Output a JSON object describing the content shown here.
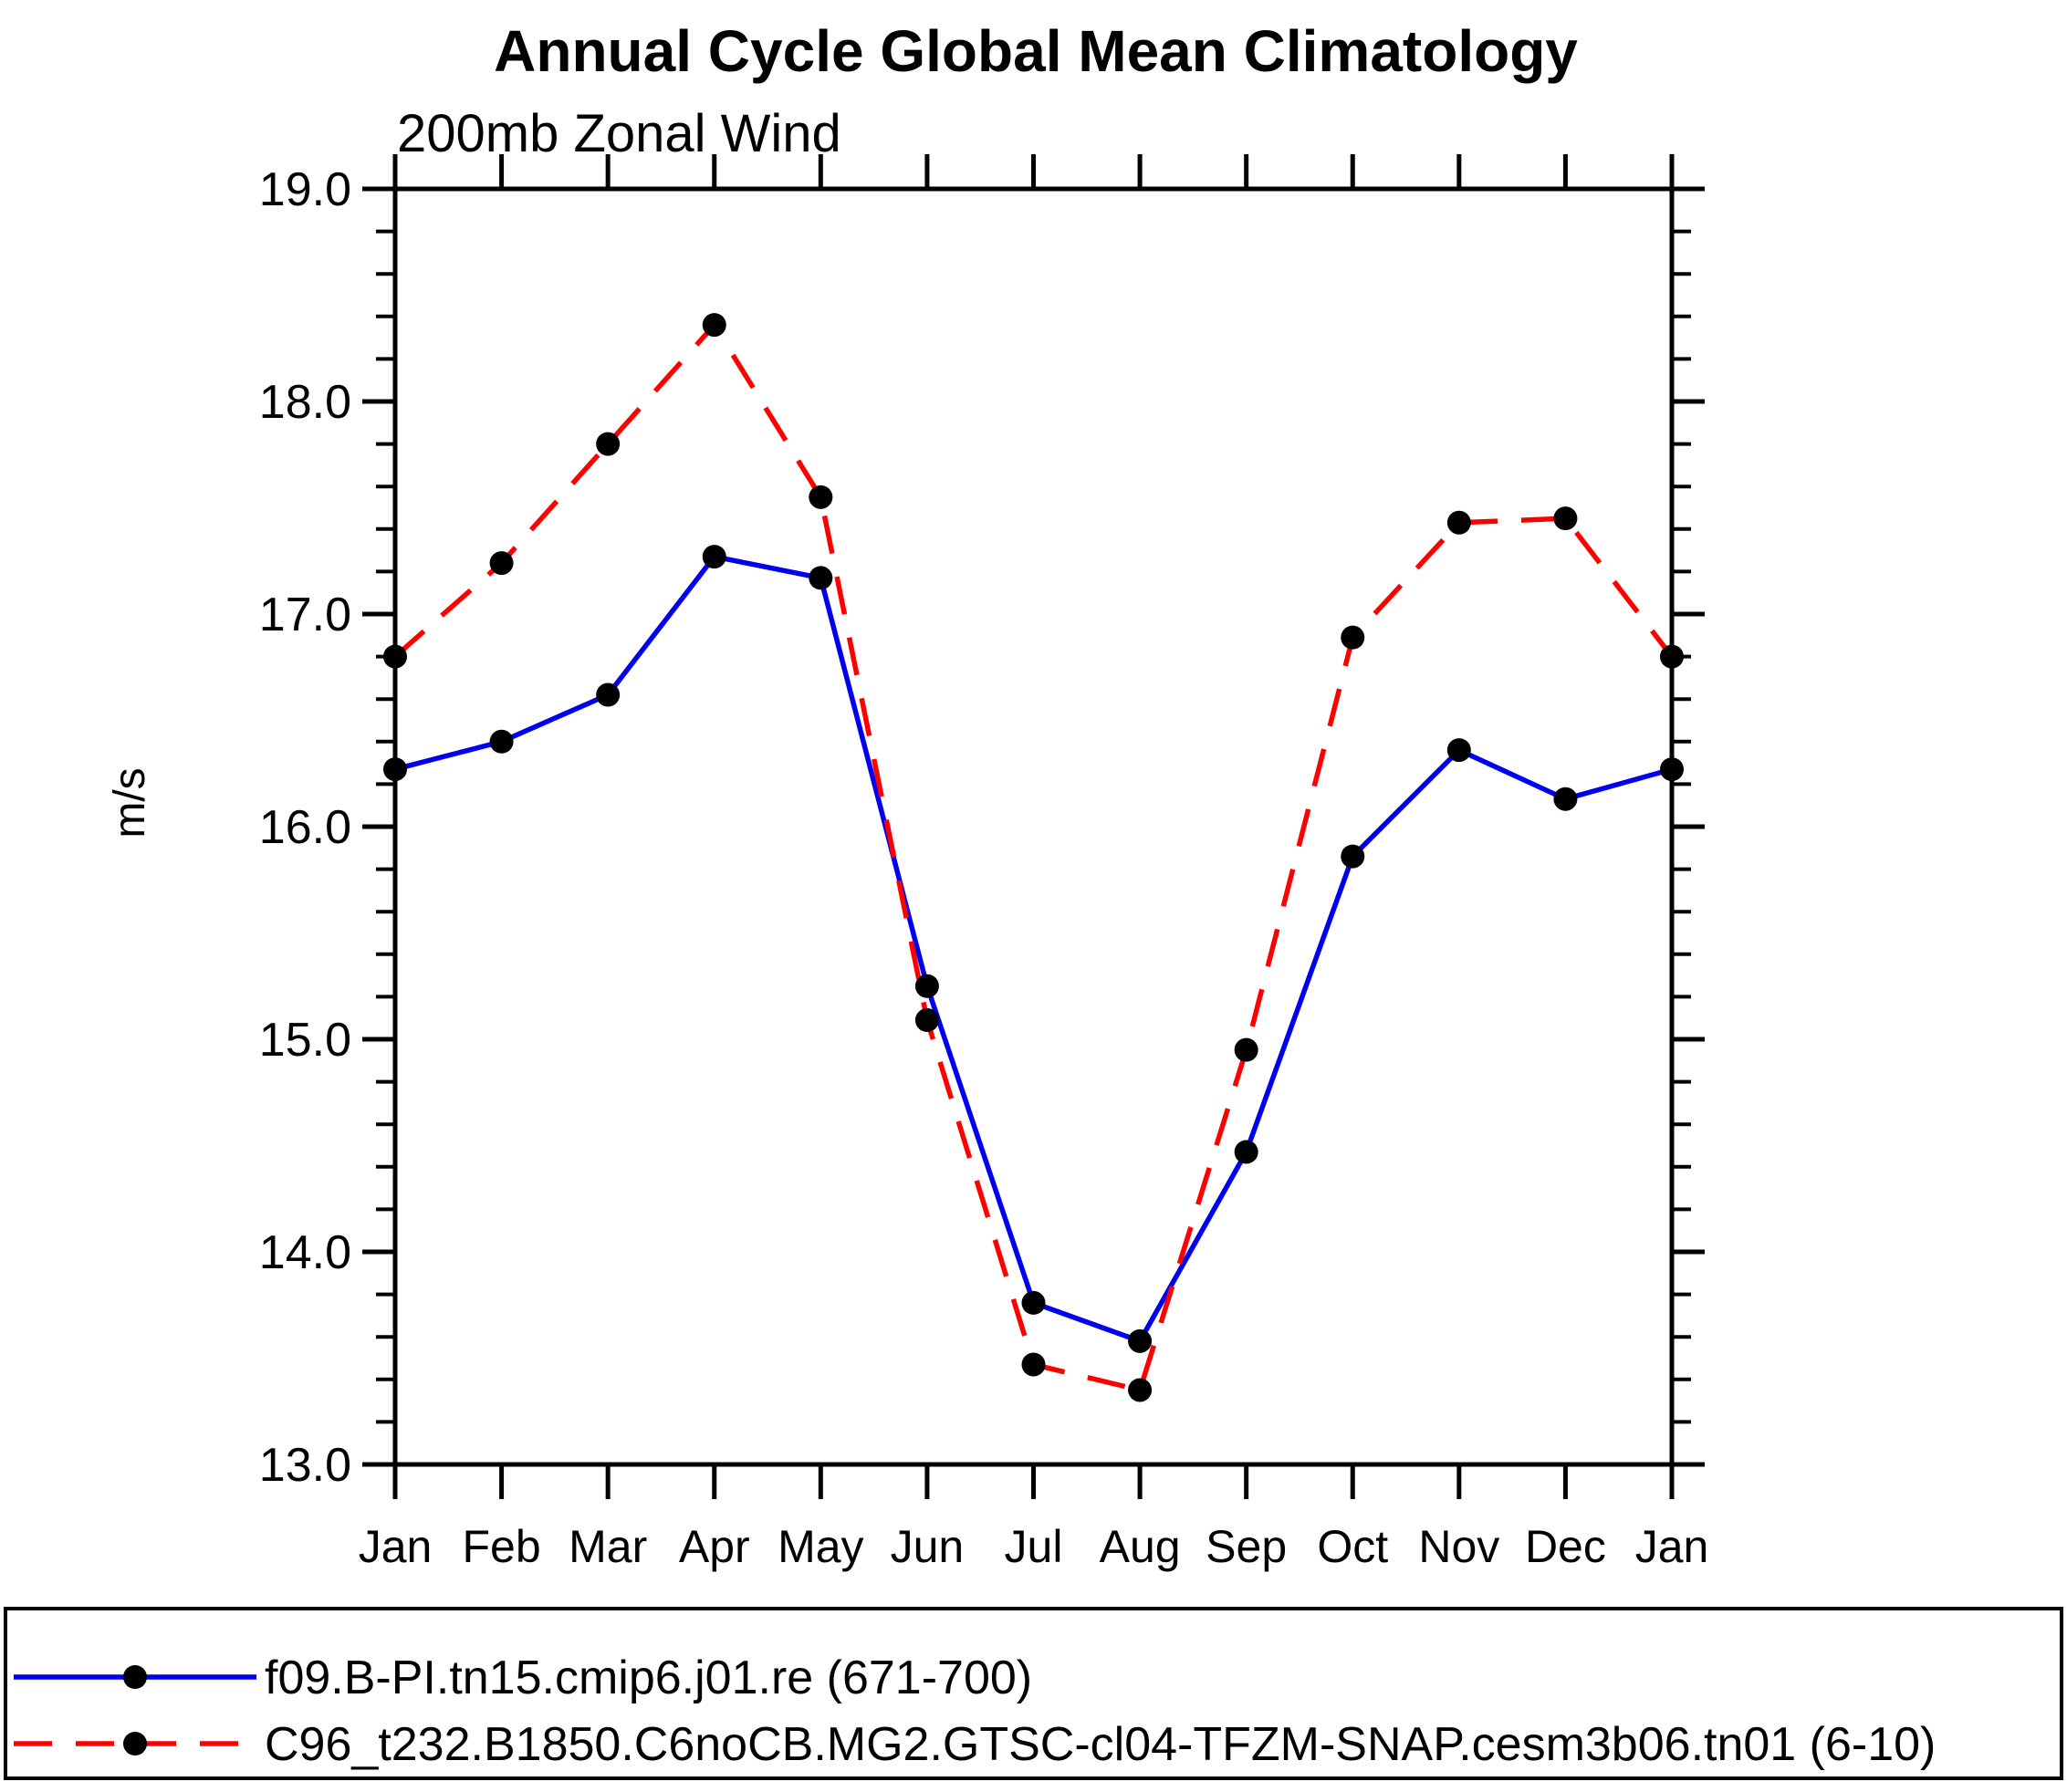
{
  "chart_data": {
    "type": "line",
    "title": "Annual Cycle Global Mean Climatology",
    "subtitle": "200mb Zonal Wind",
    "ylabel": "m/s",
    "xlabel": "",
    "categories": [
      "Jan",
      "Feb",
      "Mar",
      "Apr",
      "May",
      "Jun",
      "Jul",
      "Aug",
      "Sep",
      "Oct",
      "Nov",
      "Dec",
      "Jan"
    ],
    "ylim": [
      13.0,
      19.0
    ],
    "ytick_major_interval": 1.0,
    "ytick_minor_interval": 0.2,
    "ytick_labels": [
      "13.0",
      "14.0",
      "15.0",
      "16.0",
      "17.0",
      "18.0",
      "19.0"
    ],
    "grid": false,
    "legend_position": "bottom",
    "frame_color": "#000000",
    "text_color": "#000000",
    "marker_color": "#000000",
    "series": [
      {
        "name": "f09.B-PI.tn15.cmip6.j01.re (671-700)",
        "color": "#0000ee",
        "line_style": "solid",
        "marker": "circle",
        "values": [
          16.27,
          16.4,
          16.62,
          17.27,
          17.17,
          15.25,
          13.76,
          13.58,
          14.47,
          15.86,
          16.36,
          16.13,
          16.27
        ]
      },
      {
        "name": "C96_t232.B1850.C6noCB.MG2.GTSC-cl04-TFZM-SNAP.cesm3b06.tn01 (6-10)",
        "color": "#ff0000",
        "line_style": "dashed",
        "marker": "circle",
        "values": [
          16.8,
          17.24,
          17.8,
          18.36,
          17.55,
          15.09,
          13.47,
          13.35,
          14.95,
          16.89,
          17.43,
          17.45,
          16.8
        ]
      }
    ]
  }
}
